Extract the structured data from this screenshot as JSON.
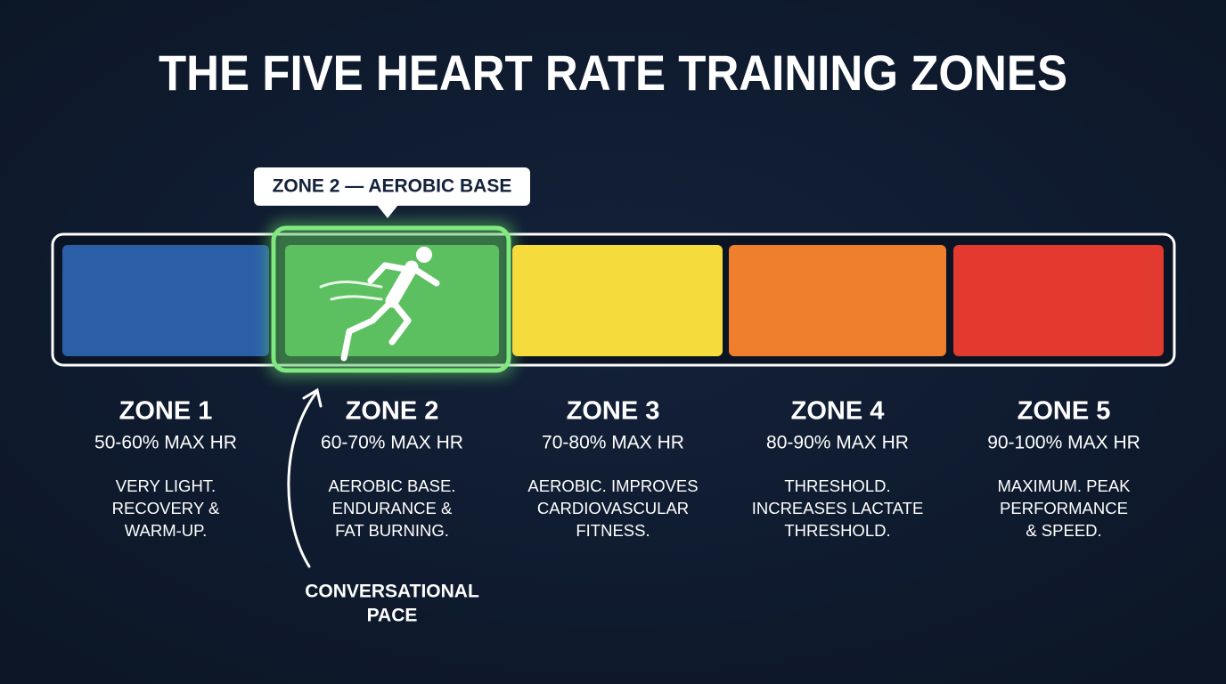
{
  "title": "THE FIVE HEART RATE TRAINING ZONES",
  "callout": "ZONE 2 — AEROBIC BASE",
  "annotation": [
    "CONVERSATIONAL",
    "PACE"
  ],
  "zones": [
    {
      "name": "ZONE 1",
      "range": "50-60% MAX HR",
      "description": [
        "VERY LIGHT.",
        "RECOVERY &",
        "WARM-UP."
      ],
      "color": "#2a5fa8"
    },
    {
      "name": "ZONE 2",
      "range": "60-70% MAX HR",
      "description": [
        "AEROBIC BASE.",
        "ENDURANCE &",
        "FAT BURNING."
      ],
      "color": "#5cc060"
    },
    {
      "name": "ZONE 3",
      "range": "70-80% MAX HR",
      "description": [
        "AEROBIC. IMPROVES",
        "CARDIOVASCULAR",
        "FITNESS."
      ],
      "color": "#f5dc3c"
    },
    {
      "name": "ZONE 4",
      "range": "80-90% MAX HR",
      "description": [
        "THRESHOLD.",
        "INCREASES LACTATE",
        "THRESHOLD."
      ],
      "color": "#ef7f2c"
    },
    {
      "name": "ZONE 5",
      "range": "90-100% MAX HR",
      "description": [
        "MAXIMUM. PEAK",
        "PERFORMANCE",
        "& SPEED."
      ],
      "color": "#e23a2f"
    }
  ]
}
